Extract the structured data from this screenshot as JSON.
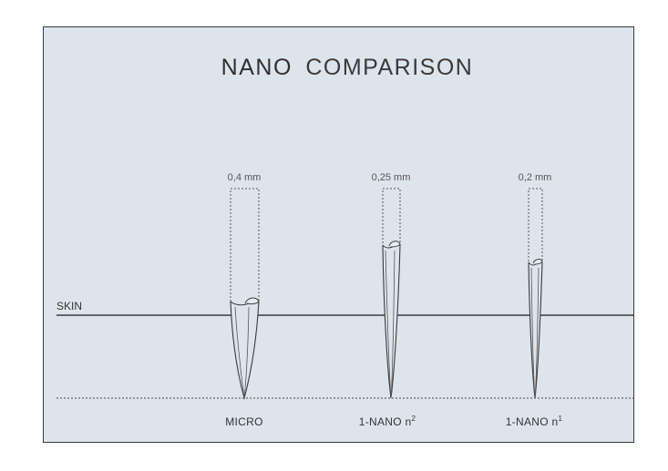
{
  "title": {
    "bold": "NANO",
    "light": "COMPARISON"
  },
  "skin_label": "SKIN",
  "needles": [
    {
      "name": "MICRO",
      "superscript": "",
      "diameter_label": "0,4 mm",
      "diameter_mm": 0.4
    },
    {
      "name": "1-NANO n",
      "superscript": "2",
      "diameter_label": "0,25 mm",
      "diameter_mm": 0.25
    },
    {
      "name": "1-NANO n",
      "superscript": "1",
      "diameter_label": "0,2 mm",
      "diameter_mm": 0.2
    }
  ],
  "colors": {
    "background": "#dde5ec",
    "line": "#3a3a3a",
    "text": "#333333"
  }
}
